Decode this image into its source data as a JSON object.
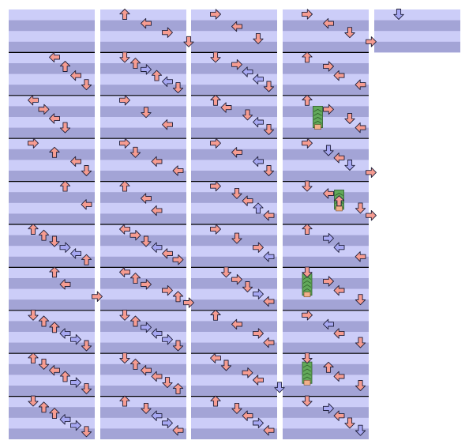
{
  "chart_data": {
    "type": "step-chart",
    "colors": {
      "background": "#ffffff",
      "light_band": "#cccdf8",
      "dark_band": "#a3a4d6",
      "measure_line": "#000000",
      "red_note": "#f69c91",
      "blue_note": "#a7a8f2",
      "freeze_body": "#62a95a",
      "freeze_head": "#f2b08a"
    },
    "columns": [
      {
        "measures": 10,
        "notes": [
          [
            1,
            2,
            "left",
            "red"
          ],
          [
            1,
            3,
            "up",
            "red"
          ],
          [
            1,
            4,
            "left",
            "red"
          ],
          [
            1,
            5,
            "down",
            "red"
          ],
          [
            2,
            0,
            "left",
            "red"
          ],
          [
            2,
            1,
            "right",
            "red"
          ],
          [
            2,
            2,
            "left",
            "red"
          ],
          [
            2,
            3,
            "down",
            "red"
          ],
          [
            3,
            0,
            "right",
            "red"
          ],
          [
            3,
            2,
            "up",
            "red"
          ],
          [
            3,
            4,
            "left",
            "red"
          ],
          [
            3,
            5,
            "down",
            "red"
          ],
          [
            4,
            3,
            "up",
            "red"
          ],
          [
            4,
            5,
            "left",
            "red"
          ],
          [
            5,
            0,
            "up",
            "red"
          ],
          [
            5,
            1,
            "up",
            "red"
          ],
          [
            5,
            2,
            "down",
            "red"
          ],
          [
            5,
            3,
            "right",
            "blue"
          ],
          [
            5,
            4,
            "left",
            "blue"
          ],
          [
            5,
            5,
            "up",
            "red"
          ],
          [
            6,
            2,
            "up",
            "red"
          ],
          [
            6,
            3,
            "left",
            "red"
          ],
          [
            6,
            6,
            "right",
            "red"
          ],
          [
            7,
            0,
            "down",
            "red"
          ],
          [
            7,
            1,
            "up",
            "red"
          ],
          [
            7,
            2,
            "up",
            "red"
          ],
          [
            7,
            3,
            "left",
            "blue"
          ],
          [
            7,
            4,
            "right",
            "blue"
          ],
          [
            7,
            5,
            "down",
            "red"
          ],
          [
            8,
            0,
            "up",
            "red"
          ],
          [
            8,
            1,
            "down",
            "red"
          ],
          [
            8,
            2,
            "left",
            "red"
          ],
          [
            8,
            3,
            "up",
            "red"
          ],
          [
            8,
            4,
            "right",
            "blue"
          ],
          [
            8,
            5,
            "down",
            "red"
          ],
          [
            9,
            0,
            "down",
            "red"
          ],
          [
            9,
            1,
            "up",
            "red"
          ],
          [
            9,
            2,
            "up",
            "red"
          ],
          [
            9,
            3,
            "left",
            "blue"
          ],
          [
            9,
            4,
            "right",
            "blue"
          ],
          [
            9,
            5,
            "down",
            "red"
          ]
        ]
      },
      {
        "measures": 10,
        "notes": [
          [
            0,
            0,
            "up",
            "red"
          ],
          [
            0,
            2,
            "left",
            "red"
          ],
          [
            0,
            4,
            "right",
            "red"
          ],
          [
            0,
            6,
            "down",
            "red"
          ],
          [
            1,
            0,
            "down",
            "red"
          ],
          [
            1,
            1,
            "up",
            "red"
          ],
          [
            1,
            2,
            "right",
            "blue"
          ],
          [
            1,
            3,
            "up",
            "red"
          ],
          [
            1,
            4,
            "left",
            "blue"
          ],
          [
            1,
            5,
            "down",
            "red"
          ],
          [
            2,
            0,
            "right",
            "red"
          ],
          [
            2,
            2,
            "down",
            "red"
          ],
          [
            2,
            4,
            "left",
            "red"
          ],
          [
            3,
            0,
            "right",
            "red"
          ],
          [
            3,
            1,
            "down",
            "red"
          ],
          [
            3,
            3,
            "left",
            "red"
          ],
          [
            3,
            5,
            "left",
            "red"
          ],
          [
            4,
            0,
            "up",
            "red"
          ],
          [
            4,
            2,
            "left",
            "red"
          ],
          [
            4,
            3,
            "left",
            "red"
          ],
          [
            5,
            0,
            "left",
            "red"
          ],
          [
            5,
            1,
            "right",
            "red"
          ],
          [
            5,
            2,
            "down",
            "red"
          ],
          [
            5,
            3,
            "left",
            "blue"
          ],
          [
            5,
            4,
            "left",
            "red"
          ],
          [
            5,
            5,
            "right",
            "red"
          ],
          [
            6,
            0,
            "left",
            "red"
          ],
          [
            6,
            1,
            "up",
            "red"
          ],
          [
            6,
            2,
            "right",
            "red"
          ],
          [
            6,
            4,
            "right",
            "red"
          ],
          [
            6,
            5,
            "up",
            "red"
          ],
          [
            6,
            6,
            "right",
            "red"
          ],
          [
            7,
            0,
            "down",
            "red"
          ],
          [
            7,
            1,
            "up",
            "red"
          ],
          [
            7,
            2,
            "right",
            "blue"
          ],
          [
            7,
            3,
            "left",
            "blue"
          ],
          [
            7,
            4,
            "right",
            "blue"
          ],
          [
            7,
            5,
            "down",
            "red"
          ],
          [
            8,
            0,
            "down",
            "red"
          ],
          [
            8,
            1,
            "up",
            "red"
          ],
          [
            8,
            2,
            "left",
            "red"
          ],
          [
            8,
            3,
            "left",
            "red"
          ],
          [
            8,
            4,
            "down",
            "red"
          ],
          [
            8,
            5,
            "up",
            "red"
          ],
          [
            9,
            0,
            "up",
            "red"
          ],
          [
            9,
            2,
            "down",
            "red"
          ],
          [
            9,
            3,
            "left",
            "blue"
          ],
          [
            9,
            4,
            "right",
            "blue"
          ],
          [
            9,
            5,
            "left",
            "red"
          ]
        ]
      },
      {
        "measures": 10,
        "notes": [
          [
            0,
            0,
            "right",
            "red"
          ],
          [
            0,
            2,
            "left",
            "red"
          ],
          [
            0,
            4,
            "down",
            "red"
          ],
          [
            1,
            0,
            "down",
            "red"
          ],
          [
            1,
            2,
            "right",
            "red"
          ],
          [
            1,
            3,
            "left",
            "blue"
          ],
          [
            1,
            4,
            "left",
            "blue"
          ],
          [
            1,
            5,
            "down",
            "red"
          ],
          [
            2,
            0,
            "up",
            "red"
          ],
          [
            2,
            1,
            "left",
            "red"
          ],
          [
            2,
            3,
            "down",
            "red"
          ],
          [
            2,
            4,
            "left",
            "blue"
          ],
          [
            2,
            5,
            "down",
            "red"
          ],
          [
            3,
            0,
            "right",
            "red"
          ],
          [
            3,
            2,
            "left",
            "red"
          ],
          [
            3,
            4,
            "left",
            "blue"
          ],
          [
            3,
            5,
            "down",
            "red"
          ],
          [
            4,
            0,
            "right",
            "red"
          ],
          [
            4,
            2,
            "down",
            "red"
          ],
          [
            4,
            3,
            "left",
            "red"
          ],
          [
            4,
            4,
            "up",
            "blue"
          ],
          [
            4,
            5,
            "left",
            "red"
          ],
          [
            5,
            0,
            "right",
            "red"
          ],
          [
            5,
            2,
            "down",
            "red"
          ],
          [
            5,
            4,
            "right",
            "red"
          ],
          [
            5,
            5,
            "left",
            "blue"
          ],
          [
            6,
            1,
            "down",
            "red"
          ],
          [
            6,
            2,
            "right",
            "red"
          ],
          [
            6,
            3,
            "down",
            "red"
          ],
          [
            6,
            4,
            "right",
            "blue"
          ],
          [
            6,
            5,
            "left",
            "red"
          ],
          [
            7,
            0,
            "up",
            "red"
          ],
          [
            7,
            2,
            "left",
            "red"
          ],
          [
            7,
            4,
            "right",
            "red"
          ],
          [
            7,
            5,
            "left",
            "red"
          ],
          [
            8,
            0,
            "left",
            "red"
          ],
          [
            8,
            1,
            "down",
            "red"
          ],
          [
            8,
            3,
            "right",
            "red"
          ],
          [
            8,
            4,
            "left",
            "red"
          ],
          [
            8,
            6,
            "down",
            "blue"
          ],
          [
            9,
            0,
            "up",
            "red"
          ],
          [
            9,
            2,
            "down",
            "red"
          ],
          [
            9,
            3,
            "left",
            "red"
          ],
          [
            9,
            4,
            "right",
            "blue"
          ],
          [
            9,
            5,
            "left",
            "red"
          ]
        ]
      },
      {
        "measures": 10,
        "notes": [
          [
            0,
            0,
            "right",
            "red"
          ],
          [
            0,
            2,
            "left",
            "red"
          ],
          [
            0,
            4,
            "down",
            "red"
          ],
          [
            0,
            6,
            "right",
            "red"
          ],
          [
            1,
            0,
            "up",
            "red"
          ],
          [
            1,
            2,
            "right",
            "red"
          ],
          [
            1,
            3,
            "left",
            "red"
          ],
          [
            1,
            5,
            "left",
            "red"
          ],
          [
            2,
            0,
            "up",
            "red"
          ],
          [
            2,
            2,
            "right",
            "red"
          ],
          [
            2,
            4,
            "down",
            "red"
          ],
          [
            2,
            5,
            "left",
            "red"
          ],
          [
            3,
            0,
            "right",
            "red"
          ],
          [
            3,
            2,
            "down",
            "blue"
          ],
          [
            3,
            3,
            "left",
            "red"
          ],
          [
            3,
            4,
            "down",
            "blue"
          ],
          [
            3,
            6,
            "right",
            "red"
          ],
          [
            4,
            0,
            "down",
            "red"
          ],
          [
            4,
            2,
            "left",
            "red"
          ],
          [
            4,
            3,
            "up",
            "red"
          ],
          [
            4,
            5,
            "down",
            "red"
          ],
          [
            4,
            6,
            "right",
            "red"
          ],
          [
            5,
            0,
            "up",
            "red"
          ],
          [
            5,
            2,
            "right",
            "blue"
          ],
          [
            5,
            3,
            "left",
            "blue"
          ],
          [
            5,
            5,
            "left",
            "red"
          ],
          [
            6,
            0,
            "down",
            "red"
          ],
          [
            6,
            2,
            "right",
            "red"
          ],
          [
            6,
            3,
            "left",
            "red"
          ],
          [
            6,
            5,
            "down",
            "red"
          ],
          [
            7,
            0,
            "right",
            "red"
          ],
          [
            7,
            2,
            "left",
            "blue"
          ],
          [
            7,
            3,
            "left",
            "red"
          ],
          [
            7,
            5,
            "down",
            "red"
          ],
          [
            8,
            0,
            "down",
            "red"
          ],
          [
            8,
            2,
            "up",
            "red"
          ],
          [
            8,
            3,
            "left",
            "red"
          ],
          [
            8,
            5,
            "down",
            "red"
          ],
          [
            9,
            0,
            "down",
            "red"
          ],
          [
            9,
            2,
            "right",
            "blue"
          ],
          [
            9,
            3,
            "left",
            "red"
          ],
          [
            9,
            4,
            "down",
            "red"
          ],
          [
            9,
            5,
            "down",
            "blue"
          ]
        ]
      },
      {
        "measures": 1,
        "notes": [
          [
            0,
            0,
            "down",
            "blue"
          ]
        ]
      }
    ],
    "freezes": [
      {
        "column": 3,
        "lane": 1,
        "start_measure": 2.25,
        "end_measure": 2.75
      },
      {
        "column": 3,
        "lane": 3,
        "start_measure": 4.2,
        "end_measure": 4.65
      },
      {
        "column": 3,
        "lane": 0,
        "start_measure": 6.15,
        "end_measure": 6.65
      },
      {
        "column": 3,
        "lane": 0,
        "start_measure": 8.2,
        "end_measure": 8.7
      }
    ]
  }
}
